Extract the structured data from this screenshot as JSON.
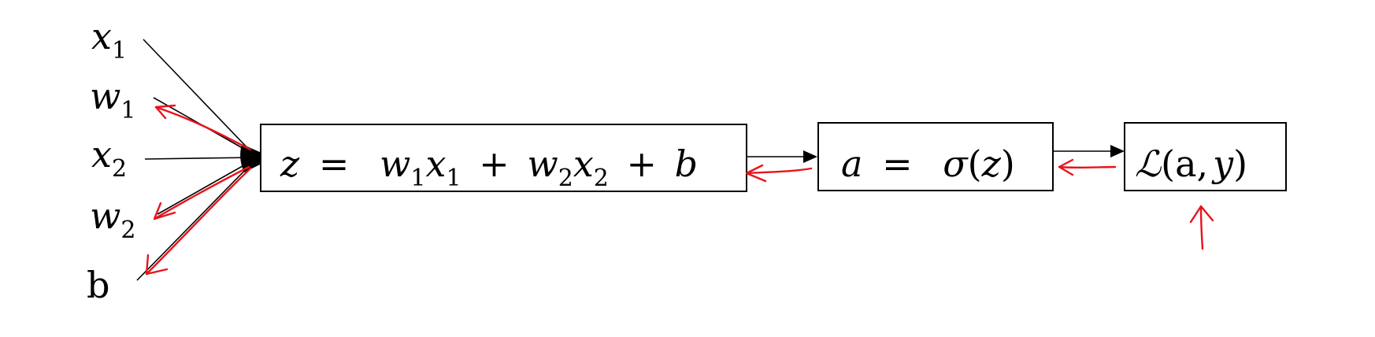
{
  "inputs": {
    "x1": {
      "base": "x",
      "sub": "1"
    },
    "w1": {
      "base": "w",
      "sub": "1"
    },
    "x2": {
      "base": "x",
      "sub": "2"
    },
    "w2": {
      "base": "w",
      "sub": "2"
    },
    "b": {
      "base": "b"
    }
  },
  "nodes": {
    "linear": {
      "lhs": "z",
      "eq": "=",
      "t1_coef": "w",
      "t1_coef_sub": "1",
      "t1_var": "x",
      "t1_var_sub": "1",
      "plus1": "+",
      "t2_coef": "w",
      "t2_coef_sub": "2",
      "t2_var": "x",
      "t2_var_sub": "2",
      "plus2": "+",
      "bias": "b"
    },
    "activation": {
      "lhs": "a",
      "eq": "=",
      "func": "σ",
      "open": "(",
      "arg": "z",
      "close": ")"
    },
    "loss": {
      "func": "ℒ",
      "open": "(",
      "arg1": "a",
      "comma": ",",
      "arg2": "y",
      "close": ")"
    }
  },
  "colors": {
    "ink": "#000000",
    "backprop": "#e8141b"
  }
}
